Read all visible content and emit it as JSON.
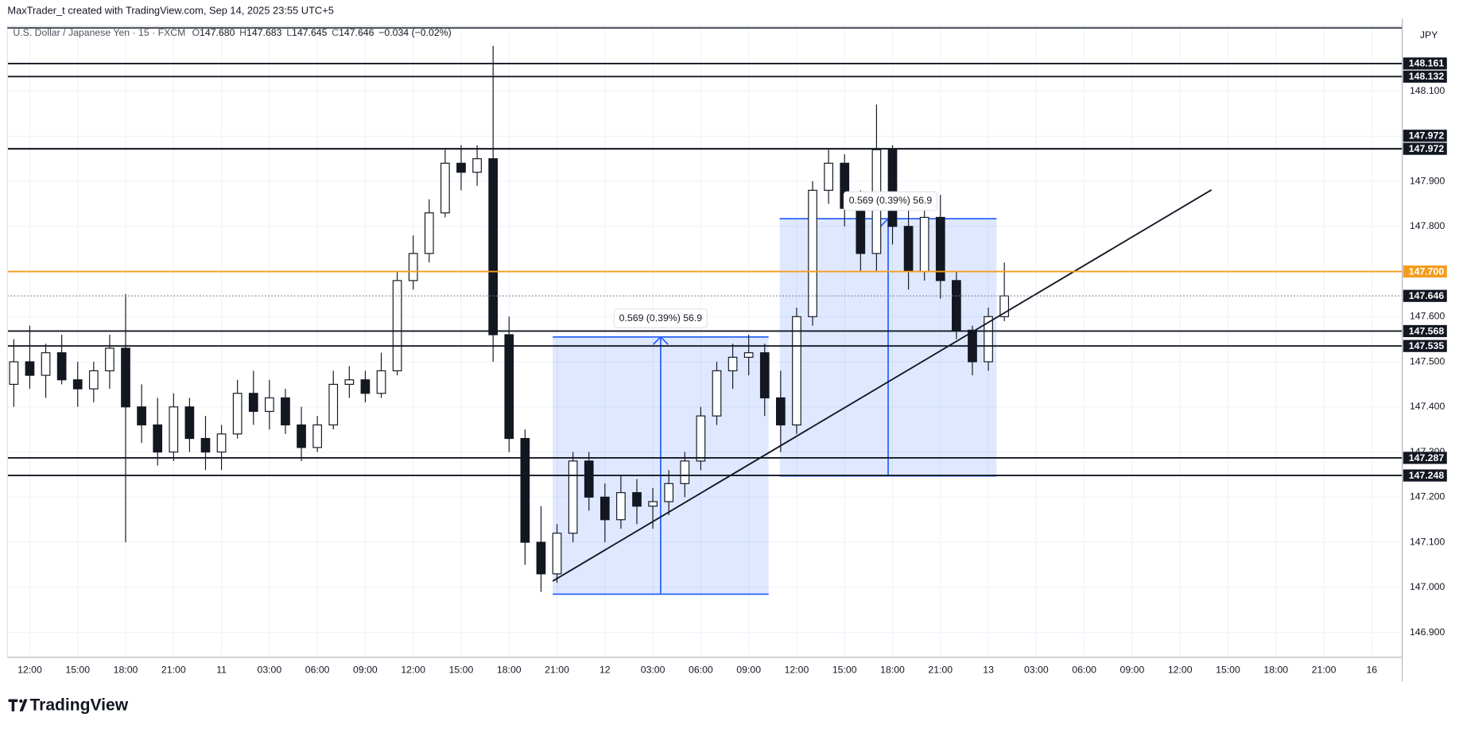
{
  "header": {
    "attribution": "MaxTrader_t created with TradingView.com, Sep 14, 2025 23:55 UTC+5",
    "symbol": "U.S. Dollar / Japanese Yen · 15 · FXCM",
    "open_tag": "O",
    "open": "147.680",
    "high_tag": "H",
    "high": "147.683",
    "low_tag": "L",
    "low": "147.645",
    "close_tag": "C",
    "close": "147.646",
    "change": "−0.034 (−0.02%)"
  },
  "footer": {
    "logo": "TradingView"
  },
  "chart_data": {
    "type": "candlestick",
    "currency": "JPY",
    "up_color": "#ffffff",
    "down_color": "#131722",
    "grid": true,
    "ylim": [
      146.845,
      148.244
    ],
    "yticks": [
      {
        "value": 146.9,
        "label": "146.900"
      },
      {
        "value": 147,
        "label": "147.000"
      },
      {
        "value": 147.1,
        "label": "147.100"
      },
      {
        "value": 147.2,
        "label": "147.200"
      },
      {
        "value": 147.3,
        "label": "147.300"
      },
      {
        "value": 147.4,
        "label": "147.400"
      },
      {
        "value": 147.5,
        "label": "147.500"
      },
      {
        "value": 147.6,
        "label": "147.600"
      },
      {
        "value": 147.7,
        "label": "147.700"
      },
      {
        "value": 147.8,
        "label": "147.800"
      },
      {
        "value": 147.9,
        "label": "147.900"
      },
      {
        "value": 148,
        "label": "148.000"
      },
      {
        "value": 148.1,
        "label": "148.100"
      }
    ],
    "categories": [
      null,
      "12:00",
      null,
      null,
      "15:00",
      null,
      null,
      "18:00",
      null,
      null,
      "21:00",
      null,
      null,
      "11",
      null,
      null,
      "03:00",
      null,
      null,
      "06:00",
      null,
      null,
      "09:00",
      null,
      null,
      "12:00",
      null,
      null,
      "15:00",
      null,
      null,
      "18:00",
      null,
      null,
      "21:00",
      null,
      null,
      "12",
      null,
      null,
      "03:00",
      null,
      null,
      "06:00",
      null,
      null,
      "09:00",
      null,
      null,
      "12:00",
      null,
      null,
      "15:00",
      null,
      null,
      "18:00",
      null,
      null,
      "21:00",
      null,
      null,
      "13",
      null,
      null,
      "03:00",
      null,
      null,
      "06:00",
      null,
      null,
      "09:00",
      null,
      null,
      "12:00",
      null,
      null,
      "15:00",
      null,
      null,
      "18:00",
      null,
      null,
      "21:00",
      null,
      null,
      "16"
    ],
    "open": [
      147.45,
      147.5,
      147.47,
      147.52,
      147.46,
      147.44,
      147.48,
      147.53,
      147.4,
      147.36,
      147.3,
      147.4,
      147.33,
      147.3,
      147.34,
      147.43,
      147.39,
      147.42,
      147.36,
      147.31,
      147.36,
      147.45,
      147.46,
      147.43,
      147.48,
      147.68,
      147.74,
      147.83,
      147.94,
      147.92,
      147.95,
      147.56,
      147.33,
      147.1,
      147.03,
      147.12,
      147.28,
      147.2,
      147.15,
      147.21,
      147.18,
      147.19,
      147.23,
      147.28,
      147.38,
      147.48,
      147.51,
      147.52,
      147.42,
      147.36,
      147.6,
      147.88,
      147.94,
      147.84,
      147.74,
      147.97,
      147.8,
      147.7,
      147.82,
      147.68,
      147.57,
      147.5,
      147.6,
      null,
      null,
      null,
      null,
      null,
      null,
      null,
      null,
      null,
      null,
      null,
      null,
      null,
      null,
      null,
      null,
      null,
      null,
      null,
      null,
      null,
      null,
      null
    ],
    "high": [
      147.55,
      147.58,
      147.54,
      147.56,
      147.5,
      147.5,
      147.56,
      147.65,
      147.45,
      147.42,
      147.43,
      147.42,
      147.38,
      147.36,
      147.46,
      147.48,
      147.46,
      147.44,
      147.4,
      147.38,
      147.48,
      147.49,
      147.48,
      147.52,
      147.7,
      147.78,
      147.86,
      147.97,
      147.98,
      147.98,
      148.2,
      147.6,
      147.35,
      147.18,
      147.14,
      147.3,
      147.3,
      147.23,
      147.25,
      147.24,
      147.22,
      147.26,
      147.3,
      147.4,
      147.5,
      147.54,
      147.56,
      147.54,
      147.48,
      147.62,
      147.9,
      147.97,
      147.96,
      147.88,
      148.07,
      147.98,
      147.84,
      147.86,
      147.87,
      147.7,
      147.58,
      147.62,
      147.72,
      null,
      null,
      null,
      null,
      null,
      null,
      null,
      null,
      null,
      null,
      null,
      null,
      null,
      null,
      null,
      null,
      null,
      null,
      null,
      null,
      null,
      null,
      null
    ],
    "low": [
      147.4,
      147.44,
      147.42,
      147.45,
      147.4,
      147.41,
      147.44,
      147.1,
      147.32,
      147.27,
      147.28,
      147.3,
      147.26,
      147.26,
      147.33,
      147.36,
      147.35,
      147.34,
      147.28,
      147.3,
      147.35,
      147.42,
      147.41,
      147.42,
      147.47,
      147.66,
      147.72,
      147.82,
      147.88,
      147.89,
      147.5,
      147.3,
      147.05,
      146.99,
      147.01,
      147.1,
      147.17,
      147.1,
      147.13,
      147.14,
      147.13,
      147.16,
      147.2,
      147.26,
      147.36,
      147.44,
      147.47,
      147.38,
      147.3,
      147.34,
      147.58,
      147.85,
      147.8,
      147.7,
      147.7,
      147.76,
      147.66,
      147.68,
      147.64,
      147.55,
      147.47,
      147.48,
      147.59,
      null,
      null,
      null,
      null,
      null,
      null,
      null,
      null,
      null,
      null,
      null,
      null,
      null,
      null,
      null,
      null,
      null,
      null,
      null,
      null,
      null,
      null,
      null
    ],
    "close": [
      147.5,
      147.47,
      147.52,
      147.46,
      147.44,
      147.48,
      147.53,
      147.4,
      147.36,
      147.3,
      147.4,
      147.33,
      147.3,
      147.34,
      147.43,
      147.39,
      147.42,
      147.36,
      147.31,
      147.36,
      147.45,
      147.46,
      147.43,
      147.48,
      147.68,
      147.74,
      147.83,
      147.94,
      147.92,
      147.95,
      147.56,
      147.33,
      147.1,
      147.03,
      147.12,
      147.28,
      147.2,
      147.15,
      147.21,
      147.18,
      147.19,
      147.23,
      147.28,
      147.38,
      147.48,
      147.51,
      147.52,
      147.42,
      147.36,
      147.6,
      147.88,
      147.94,
      147.84,
      147.74,
      147.97,
      147.8,
      147.7,
      147.82,
      147.68,
      147.57,
      147.5,
      147.6,
      147.646,
      null,
      null,
      null,
      null,
      null,
      null,
      null,
      null,
      null,
      null,
      null,
      null,
      null,
      null,
      null,
      null,
      null,
      null,
      null,
      null,
      null,
      null,
      null
    ],
    "levels": [
      {
        "value": 148.161,
        "color": "#131722"
      },
      {
        "value": 148.132,
        "color": "#131722"
      },
      {
        "value": 147.972,
        "color": "#131722"
      },
      {
        "value": 147.972,
        "color": "#131722"
      },
      {
        "value": {
          "value": 147.7,
          "label": "147.700"
        },
        "color": "#f59d1f"
      },
      {
        "value": 147.646,
        "color": "#131722",
        "style": "dotted"
      },
      {
        "value": 147.568,
        "color": "#131722"
      },
      {
        "value": 147.535,
        "color": "#131722"
      },
      {
        "value": 147.287,
        "color": "#131722"
      },
      {
        "value": 147.248,
        "color": "#131722"
      }
    ],
    "measures": [
      {
        "top": 147.555,
        "bottom": 146.985,
        "label": "0.569 (0.39%) 56.9",
        "color": "#2962ff"
      },
      {
        "top": 147.817,
        "bottom": 147.247,
        "label": "0.569 (0.39%) 56.9",
        "color": "#2962ff"
      }
    ],
    "trendline": [
      147.014,
      147.881
    ]
  }
}
